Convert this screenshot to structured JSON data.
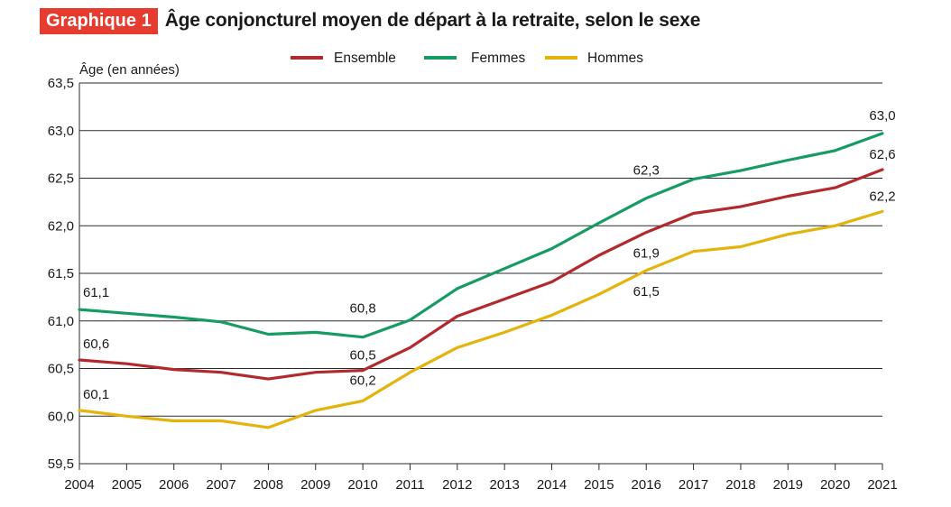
{
  "header": {
    "badge": "Graphique 1",
    "title": "Âge conjoncturel moyen de départ à la retraite, selon le sexe"
  },
  "chart_data": {
    "type": "line",
    "title": "Âge conjoncturel moyen de départ à la retraite, selon le sexe",
    "xlabel": "",
    "ylabel": "Âge (en années)",
    "x": [
      2004,
      2005,
      2006,
      2007,
      2008,
      2009,
      2010,
      2011,
      2012,
      2013,
      2014,
      2015,
      2016,
      2017,
      2018,
      2019,
      2020,
      2021
    ],
    "ylim": [
      59.5,
      63.5
    ],
    "yticks": [
      "59,5",
      "60,0",
      "60,5",
      "61,0",
      "61,5",
      "62,0",
      "62,5",
      "63,0",
      "63,5"
    ],
    "ytick_values": [
      59.5,
      60.0,
      60.5,
      61.0,
      61.5,
      62.0,
      62.5,
      63.0,
      63.5
    ],
    "grid": true,
    "legend_position": "top-center",
    "series": [
      {
        "name": "Ensemble",
        "color": "#b22a2e",
        "values": [
          60.59,
          60.55,
          60.49,
          60.46,
          60.39,
          60.46,
          60.48,
          60.72,
          61.05,
          61.23,
          61.41,
          61.69,
          61.93,
          62.13,
          62.2,
          62.31,
          62.4,
          62.59
        ]
      },
      {
        "name": "Femmes",
        "color": "#169b62",
        "values": [
          61.12,
          61.08,
          61.04,
          60.99,
          60.86,
          60.88,
          60.83,
          61.01,
          61.34,
          61.55,
          61.76,
          62.03,
          62.29,
          62.49,
          62.58,
          62.69,
          62.79,
          62.97
        ]
      },
      {
        "name": "Hommes",
        "color": "#e4b30c",
        "values": [
          60.06,
          60.0,
          59.95,
          59.95,
          59.88,
          60.06,
          60.16,
          60.46,
          60.72,
          60.88,
          61.06,
          61.28,
          61.53,
          61.73,
          61.78,
          61.91,
          62.0,
          62.15
        ]
      }
    ],
    "annotations": [
      {
        "text": "61,1",
        "series": "Femmes",
        "x": 2004
      },
      {
        "text": "60,6",
        "series": "Ensemble",
        "x": 2004
      },
      {
        "text": "60,1",
        "series": "Hommes",
        "x": 2004
      },
      {
        "text": "60,8",
        "series": "Femmes",
        "x": 2010
      },
      {
        "text": "60,5",
        "series": "Ensemble",
        "x": 2010
      },
      {
        "text": "60,2",
        "series": "Hommes",
        "x": 2010
      },
      {
        "text": "62,3",
        "series": "Femmes",
        "x": 2016
      },
      {
        "text": "61,9",
        "series": "Ensemble",
        "x": 2016
      },
      {
        "text": "61,5",
        "series": "Hommes",
        "x": 2016
      },
      {
        "text": "63,0",
        "series": "Femmes",
        "x": 2021
      },
      {
        "text": "62,6",
        "series": "Ensemble",
        "x": 2021
      },
      {
        "text": "62,2",
        "series": "Hommes",
        "x": 2021
      }
    ]
  }
}
